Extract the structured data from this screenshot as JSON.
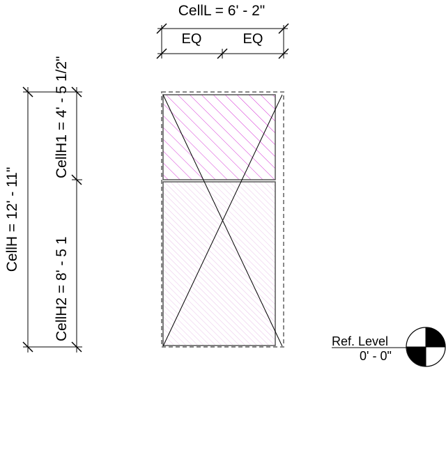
{
  "dimensions": {
    "cell_length": "CellL = 6' - 2\"",
    "eq_left": "EQ",
    "eq_right": "EQ",
    "cell_height": "CellH = 12' - 11\"",
    "cell_height_1": "CellH1 = 4' - 5 1/2\"",
    "cell_height_2": "CellH2 = 8' - 5 1"
  },
  "level": {
    "name": "Ref. Level",
    "elevation": "0' - 0\""
  },
  "colors": {
    "hatch_top": "#cc00cc",
    "hatch_bottom": "#e0a8e0",
    "line": "#000000",
    "dashed_outline": "#888888",
    "frame": "#555555"
  }
}
